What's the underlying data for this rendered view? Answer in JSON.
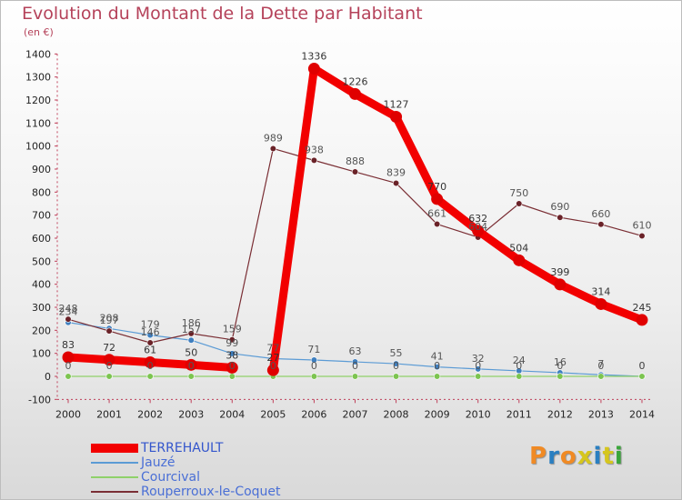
{
  "title": "Evolution du Montant de la Dette par Habitant",
  "unit_label": "(en €)",
  "brand": "Proxiti",
  "brand_colors": [
    "#f08a24",
    "#2a7fc1",
    "#f08a24",
    "#d6c61d",
    "#2a7fc1",
    "#d6c61d",
    "#3aa63a"
  ],
  "chart_data": {
    "type": "line",
    "x": [
      2000,
      2001,
      2002,
      2003,
      2004,
      2005,
      2006,
      2007,
      2008,
      2009,
      2010,
      2011,
      2012,
      2013,
      2014
    ],
    "ylim": [
      -100,
      1400
    ],
    "yticks": [
      -100,
      0,
      100,
      200,
      300,
      400,
      500,
      600,
      700,
      800,
      900,
      1000,
      1100,
      1200,
      1300,
      1400
    ],
    "grid": false,
    "legend_position": "bottom-left",
    "series": [
      {
        "name": "TERREHAULT",
        "color": "#f20000",
        "marker_color": "#e00000",
        "label_color": "#333333",
        "emphasis": true,
        "segments": [
          [
            0,
            4
          ],
          [
            5,
            14
          ]
        ],
        "values": [
          83,
          72,
          61,
          50,
          38,
          27,
          1336,
          1226,
          1127,
          770,
          632,
          504,
          399,
          314,
          245
        ]
      },
      {
        "name": "Jauzé",
        "color": "#5b9bd5",
        "marker_color": "#3f7fbf",
        "label_color": "#555555",
        "emphasis": false,
        "values": [
          234,
          208,
          179,
          157,
          99,
          77,
          71,
          63,
          55,
          41,
          32,
          24,
          16,
          7,
          0
        ]
      },
      {
        "name": "Courcival",
        "color": "#8fd16a",
        "marker_color": "#7cc450",
        "label_color": "#555555",
        "emphasis": false,
        "values": [
          0,
          0,
          0,
          0,
          0,
          0,
          0,
          0,
          0,
          0,
          0,
          0,
          0,
          0,
          0
        ]
      },
      {
        "name": "Rouperroux-le-Coquet",
        "color": "#7a2e34",
        "marker_color": "#6a2228",
        "label_color": "#555555",
        "emphasis": false,
        "values": [
          248,
          197,
          146,
          186,
          159,
          989,
          938,
          888,
          839,
          661,
          604,
          750,
          690,
          660,
          610
        ]
      }
    ]
  }
}
